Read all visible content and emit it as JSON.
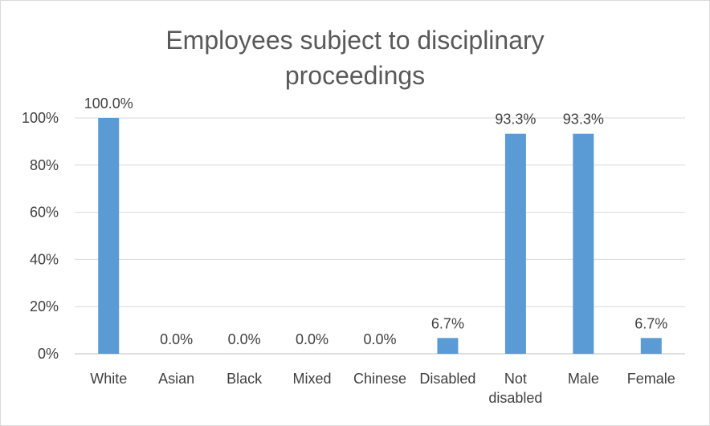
{
  "chart_data": {
    "type": "bar",
    "title_lines": [
      "Employees subject to disciplinary",
      "proceedings"
    ],
    "categories": [
      [
        "White"
      ],
      [
        "Asian"
      ],
      [
        "Black"
      ],
      [
        "Mixed"
      ],
      [
        "Chinese"
      ],
      [
        "Disabled"
      ],
      [
        "Not",
        "disabled"
      ],
      [
        "Male"
      ],
      [
        "Female"
      ]
    ],
    "values": [
      100.0,
      0.0,
      0.0,
      0.0,
      0.0,
      6.7,
      93.3,
      93.3,
      6.7
    ],
    "data_labels": [
      "100.0%",
      "0.0%",
      "0.0%",
      "0.0%",
      "0.0%",
      "6.7%",
      "93.3%",
      "93.3%",
      "6.7%"
    ],
    "yticks": [
      {
        "value": 0,
        "label": "0%"
      },
      {
        "value": 20,
        "label": "20%"
      },
      {
        "value": 40,
        "label": "40%"
      },
      {
        "value": 60,
        "label": "60%"
      },
      {
        "value": 80,
        "label": "80%"
      },
      {
        "value": 100,
        "label": "100%"
      }
    ],
    "ylim": [
      0,
      100
    ],
    "xlabel": "",
    "ylabel": "",
    "grid": true,
    "legend": "none",
    "bar_color": "#5b9bd5"
  }
}
